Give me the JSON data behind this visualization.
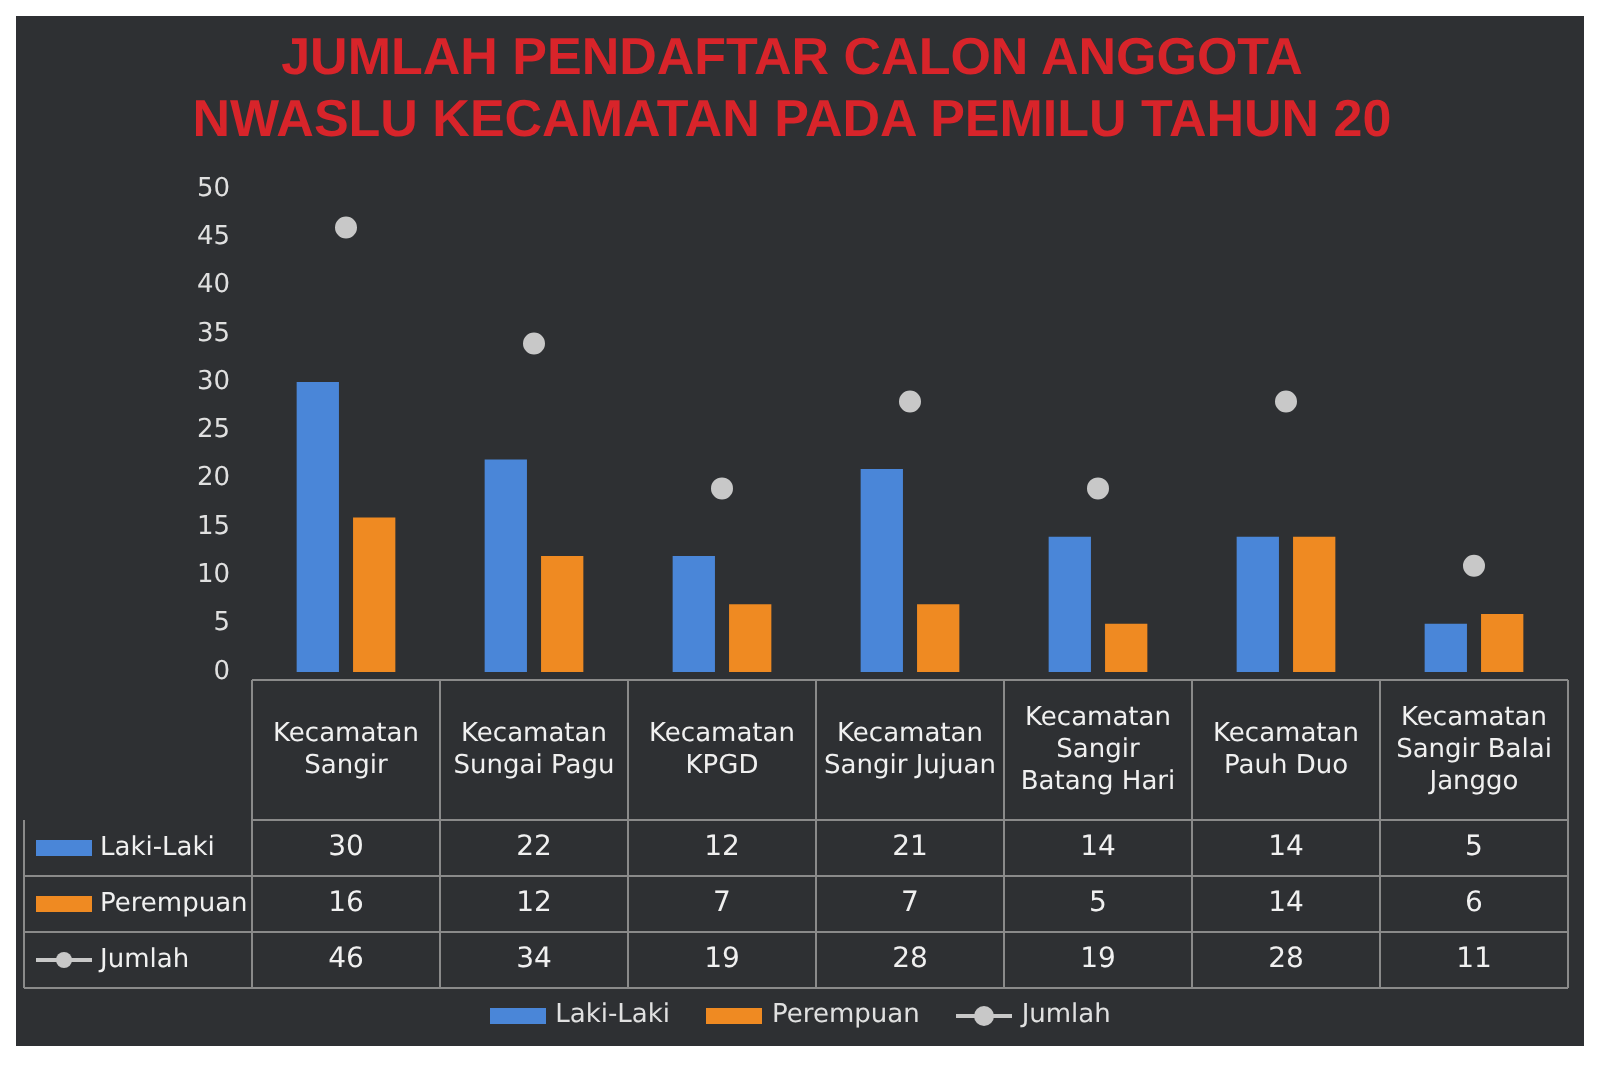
{
  "chart_data": {
    "type": "bar",
    "title": "JUMLAH PENDAFTAR CALON ANGGOTA\nNWASLU KECAMATAN PADA PEMILU TAHUN 20",
    "categories": [
      "Kecamatan Sangir",
      "Kecamatan Sungai Pagu",
      "Kecamatan KPGD",
      "Kecamatan Sangir Jujuan",
      "Kecamatan Sangir Batang Hari",
      "Kecamatan Pauh Duo",
      "Kecamatan Sangir Balai Janggo"
    ],
    "series": [
      {
        "name": "Laki-Laki",
        "color": "#4a86d8",
        "values": [
          30,
          22,
          12,
          21,
          14,
          14,
          5
        ]
      },
      {
        "name": "Perempuan",
        "color": "#ef8a22",
        "values": [
          16,
          12,
          7,
          7,
          5,
          14,
          6
        ]
      },
      {
        "name": "Jumlah",
        "type": "scatter",
        "marker": "circle",
        "color": "#c8c8c8",
        "values": [
          46,
          34,
          19,
          28,
          19,
          28,
          11
        ]
      }
    ],
    "ylim": [
      0,
      50
    ],
    "yticks": [
      0,
      5,
      10,
      15,
      20,
      25,
      30,
      35,
      40,
      45,
      50
    ],
    "data_labels": true,
    "legend": "bottom"
  }
}
